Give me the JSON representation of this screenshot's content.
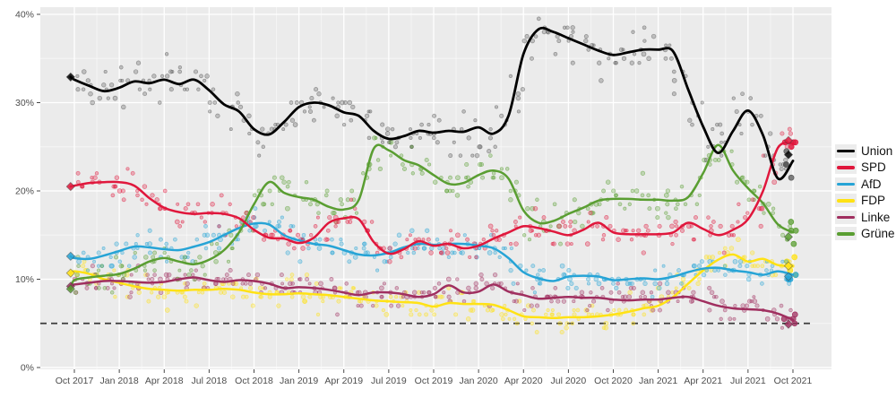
{
  "chart_data": {
    "type": "scatter",
    "description": "German federal election voting intention polls, Oct 2017 - Oct 2021; scatter of individual polls with smoothed trend lines, election results shown as diamonds",
    "x_axis": {
      "tick_labels": [
        "Oct 2017",
        "Jan 2018",
        "Apr 2018",
        "Jul 2018",
        "Oct 2018",
        "Jan 2019",
        "Apr 2019",
        "Jul 2019",
        "Oct 2019",
        "Jan 2020",
        "Apr 2020",
        "Jul 2020",
        "Oct 2020",
        "Jan 2021",
        "Apr 2021",
        "Jul 2021",
        "Oct 2021"
      ],
      "months_per_tick": 3
    },
    "y_axis": {
      "tick_labels": [
        "0%",
        "10%",
        "20%",
        "30%",
        "40%"
      ],
      "tick_values": [
        0,
        10,
        20,
        30,
        40
      ],
      "range": [
        0,
        41
      ]
    },
    "threshold": {
      "value": 5,
      "style": "dashed",
      "color": "#3c3c3c"
    },
    "panel": {
      "background": "#ebebeb",
      "major_grid": "#ffffff",
      "minor_grid_opacity": 0.55
    },
    "legend_position": "right",
    "series": [
      {
        "name": "Union",
        "color": "#000000",
        "scatter_color": "#555555",
        "sigma": 1.2,
        "election_2017": 32.9,
        "election_2021": 24.1,
        "monthly": [
          32.6,
          31.9,
          31.3,
          31.7,
          32.4,
          32.2,
          32.6,
          32.1,
          32.6,
          31.4,
          29.8,
          29.0,
          27.0,
          26.4,
          27.8,
          29.5,
          30.0,
          29.7,
          28.9,
          28.5,
          26.8,
          25.9,
          26.2,
          26.8,
          26.6,
          26.8,
          26.7,
          27.2,
          26.5,
          28.5,
          35.5,
          38.3,
          38.0,
          37.3,
          36.6,
          35.9,
          35.4,
          35.7,
          36.0,
          36.0,
          35.8,
          31.5,
          27.3,
          24.3,
          26.8,
          29.1,
          26.3,
          21.4,
          23.4
        ]
      },
      {
        "name": "SPD",
        "color": "#e0173c",
        "scatter_color": "#e0173c",
        "sigma": 0.9,
        "election_2017": 20.5,
        "election_2021": 25.7,
        "monthly": [
          20.6,
          20.9,
          21.0,
          21.0,
          20.6,
          19.2,
          18.1,
          17.6,
          17.4,
          17.5,
          17.4,
          16.9,
          15.6,
          14.7,
          14.6,
          14.1,
          14.7,
          16.4,
          16.9,
          16.8,
          14.2,
          12.9,
          13.4,
          14.3,
          13.8,
          14.0,
          13.5,
          13.8,
          14.6,
          15.3,
          16.0,
          15.8,
          15.4,
          15.0,
          15.6,
          16.4,
          15.3,
          15.1,
          15.1,
          15.1,
          15.3,
          16.4,
          15.7,
          15.0,
          15.6,
          16.8,
          20.0,
          24.9,
          25.4
        ]
      },
      {
        "name": "AfD",
        "color": "#27a4d6",
        "scatter_color": "#27a4d6",
        "sigma": 0.85,
        "election_2017": 12.6,
        "election_2021": 10.3,
        "monthly": [
          12.4,
          12.3,
          12.7,
          13.2,
          13.7,
          13.6,
          13.4,
          13.3,
          13.7,
          14.2,
          15.0,
          15.8,
          16.3,
          16.2,
          15.0,
          14.4,
          14.0,
          13.8,
          13.3,
          12.8,
          12.7,
          13.0,
          13.6,
          14.0,
          13.9,
          14.0,
          14.0,
          13.8,
          13.5,
          12.4,
          10.8,
          10.1,
          9.8,
          10.3,
          10.4,
          10.3,
          9.9,
          10.0,
          10.1,
          10.0,
          10.3,
          10.8,
          11.2,
          11.3,
          11.0,
          10.8,
          10.5,
          10.9,
          10.5
        ]
      },
      {
        "name": "FDP",
        "color": "#ffe215",
        "scatter_color": "#ffe215",
        "sigma": 0.8,
        "election_2017": 10.7,
        "election_2021": 11.5,
        "monthly": [
          10.9,
          10.6,
          10.0,
          9.6,
          9.2,
          8.9,
          8.8,
          8.7,
          8.8,
          8.8,
          8.9,
          8.8,
          8.5,
          8.3,
          8.3,
          8.4,
          8.3,
          8.2,
          8.0,
          7.8,
          7.6,
          7.5,
          7.4,
          7.3,
          6.9,
          7.3,
          7.2,
          7.2,
          7.1,
          6.5,
          5.8,
          5.7,
          5.6,
          5.7,
          5.7,
          5.8,
          6.0,
          6.3,
          6.7,
          7.0,
          8.0,
          9.5,
          11.0,
          12.2,
          12.8,
          12.0,
          12.3,
          11.6,
          11.5
        ]
      },
      {
        "name": "Linke",
        "color": "#a02f5f",
        "scatter_color": "#a02f5f",
        "sigma": 0.75,
        "election_2017": 9.2,
        "election_2021": 4.9,
        "monthly": [
          9.4,
          9.6,
          9.8,
          9.8,
          9.7,
          9.6,
          9.7,
          10.0,
          10.2,
          9.9,
          9.7,
          9.9,
          9.8,
          9.5,
          9.0,
          9.1,
          9.0,
          8.8,
          8.5,
          8.2,
          8.5,
          8.5,
          8.3,
          8.0,
          8.3,
          9.3,
          8.5,
          8.6,
          9.4,
          8.6,
          8.2,
          7.8,
          7.9,
          8.0,
          7.9,
          7.9,
          7.7,
          7.6,
          7.7,
          7.7,
          7.9,
          8.0,
          7.5,
          7.0,
          6.7,
          6.6,
          6.5,
          6.1,
          5.4
        ]
      },
      {
        "name": "Grüne",
        "color": "#5a9e32",
        "scatter_color": "#5a9e32",
        "sigma": 1.0,
        "election_2017": 8.9,
        "election_2021": 14.8,
        "monthly": [
          9.9,
          10.2,
          10.4,
          10.6,
          11.2,
          12.0,
          12.4,
          12.0,
          11.7,
          12.2,
          13.3,
          15.3,
          18.5,
          21.0,
          19.8,
          19.3,
          19.0,
          18.2,
          17.9,
          19.0,
          24.8,
          24.6,
          23.5,
          22.9,
          21.8,
          20.8,
          20.9,
          21.8,
          22.3,
          21.4,
          17.8,
          16.4,
          16.6,
          17.4,
          18.1,
          18.9,
          19.1,
          19.1,
          19.0,
          19.0,
          18.9,
          19.3,
          22.0,
          25.2,
          22.3,
          20.3,
          18.6,
          16.2,
          15.3
        ]
      }
    ]
  }
}
